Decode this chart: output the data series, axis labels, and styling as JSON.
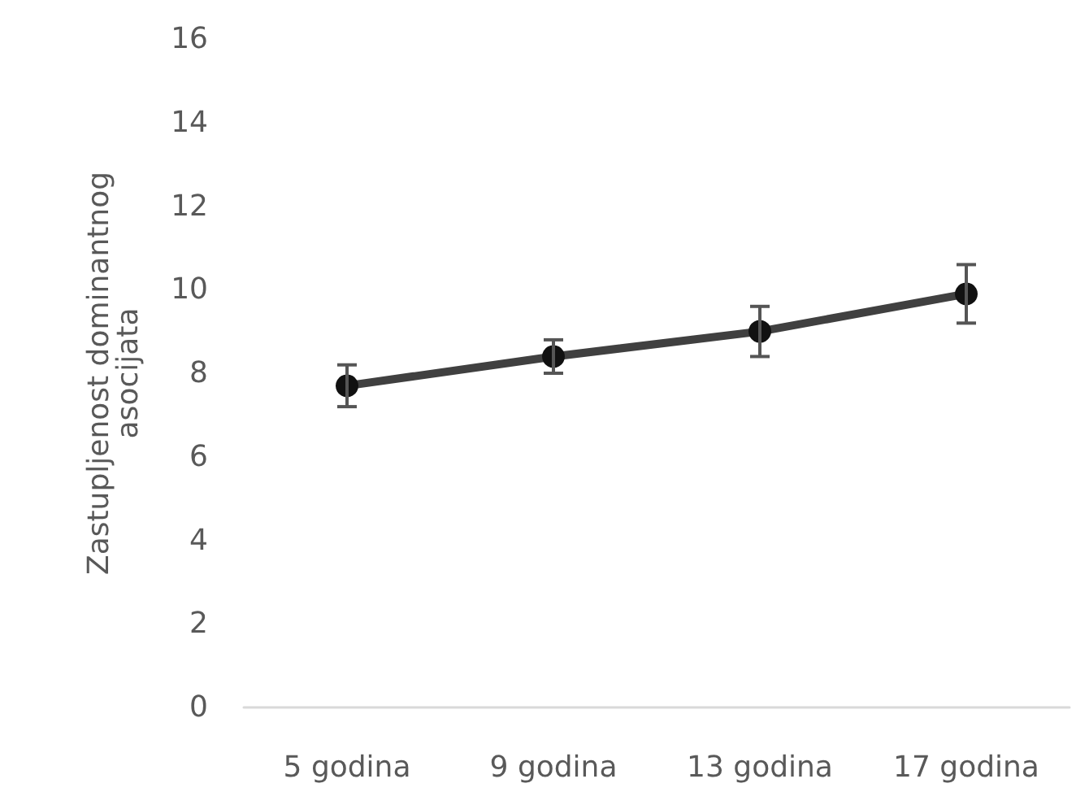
{
  "chart_data": {
    "type": "line",
    "ylabel": "Zastupljenost dominantnog asocijata",
    "categories": [
      "5 godina",
      "9 godina",
      "13 godina",
      "17 godina"
    ],
    "series": [
      {
        "color": "#404040",
        "values": [
          7.7,
          8.4,
          9.0,
          9.9
        ],
        "errors": [
          0.5,
          0.4,
          0.6,
          0.7
        ]
      }
    ],
    "ylim": [
      0,
      16
    ],
    "yticks": [
      0,
      2,
      4,
      6,
      8,
      10,
      12,
      14,
      16
    ],
    "grid": false,
    "marker": "circle",
    "line_style": "solid"
  }
}
